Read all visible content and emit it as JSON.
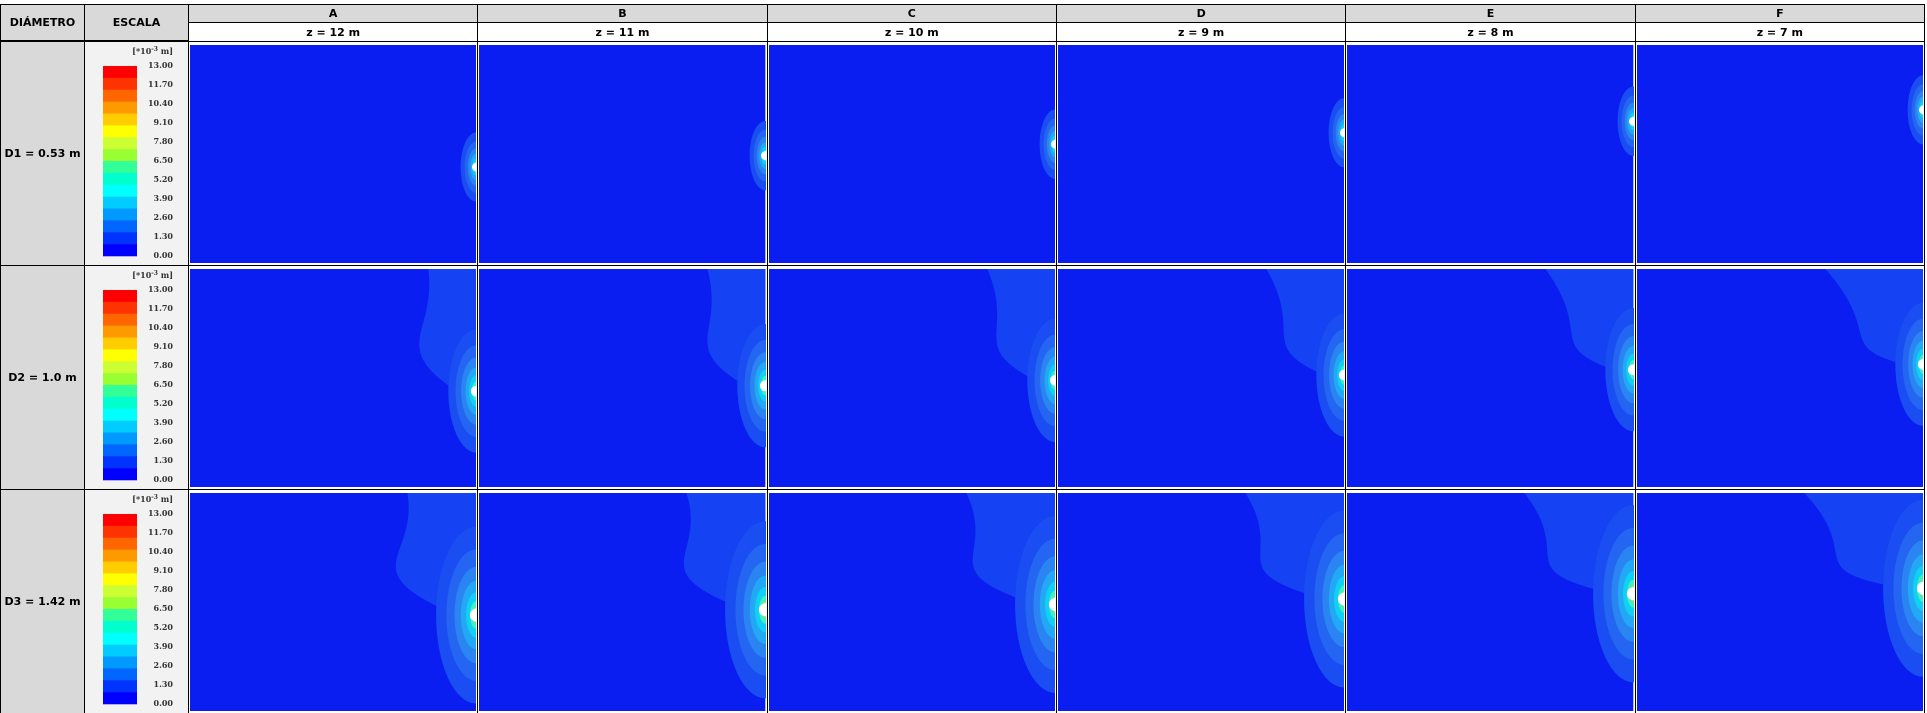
{
  "header": {
    "diameter": "DIÁMETRO",
    "scale": "ESCALA"
  },
  "columns": [
    {
      "letter": "A",
      "depth": "z = 12 m"
    },
    {
      "letter": "B",
      "depth": "z = 11 m"
    },
    {
      "letter": "C",
      "depth": "z = 10 m"
    },
    {
      "letter": "D",
      "depth": "z = 9 m"
    },
    {
      "letter": "E",
      "depth": "z = 8 m"
    },
    {
      "letter": "F",
      "depth": "z = 7 m"
    }
  ],
  "legend": {
    "unit_prefix": "[*10",
    "unit_exponent": "-3",
    "unit_suffix": " m]",
    "labels": [
      "13.00",
      "11.70",
      "10.40",
      "9.10",
      "7.80",
      "6.50",
      "5.20",
      "3.90",
      "2.60",
      "1.30",
      "0.00"
    ]
  },
  "rows": [
    {
      "label": "D1 = 0.53 m"
    },
    {
      "label": "D2 = 1.0 m"
    },
    {
      "label": "D3 = 1.42 m"
    }
  ]
}
